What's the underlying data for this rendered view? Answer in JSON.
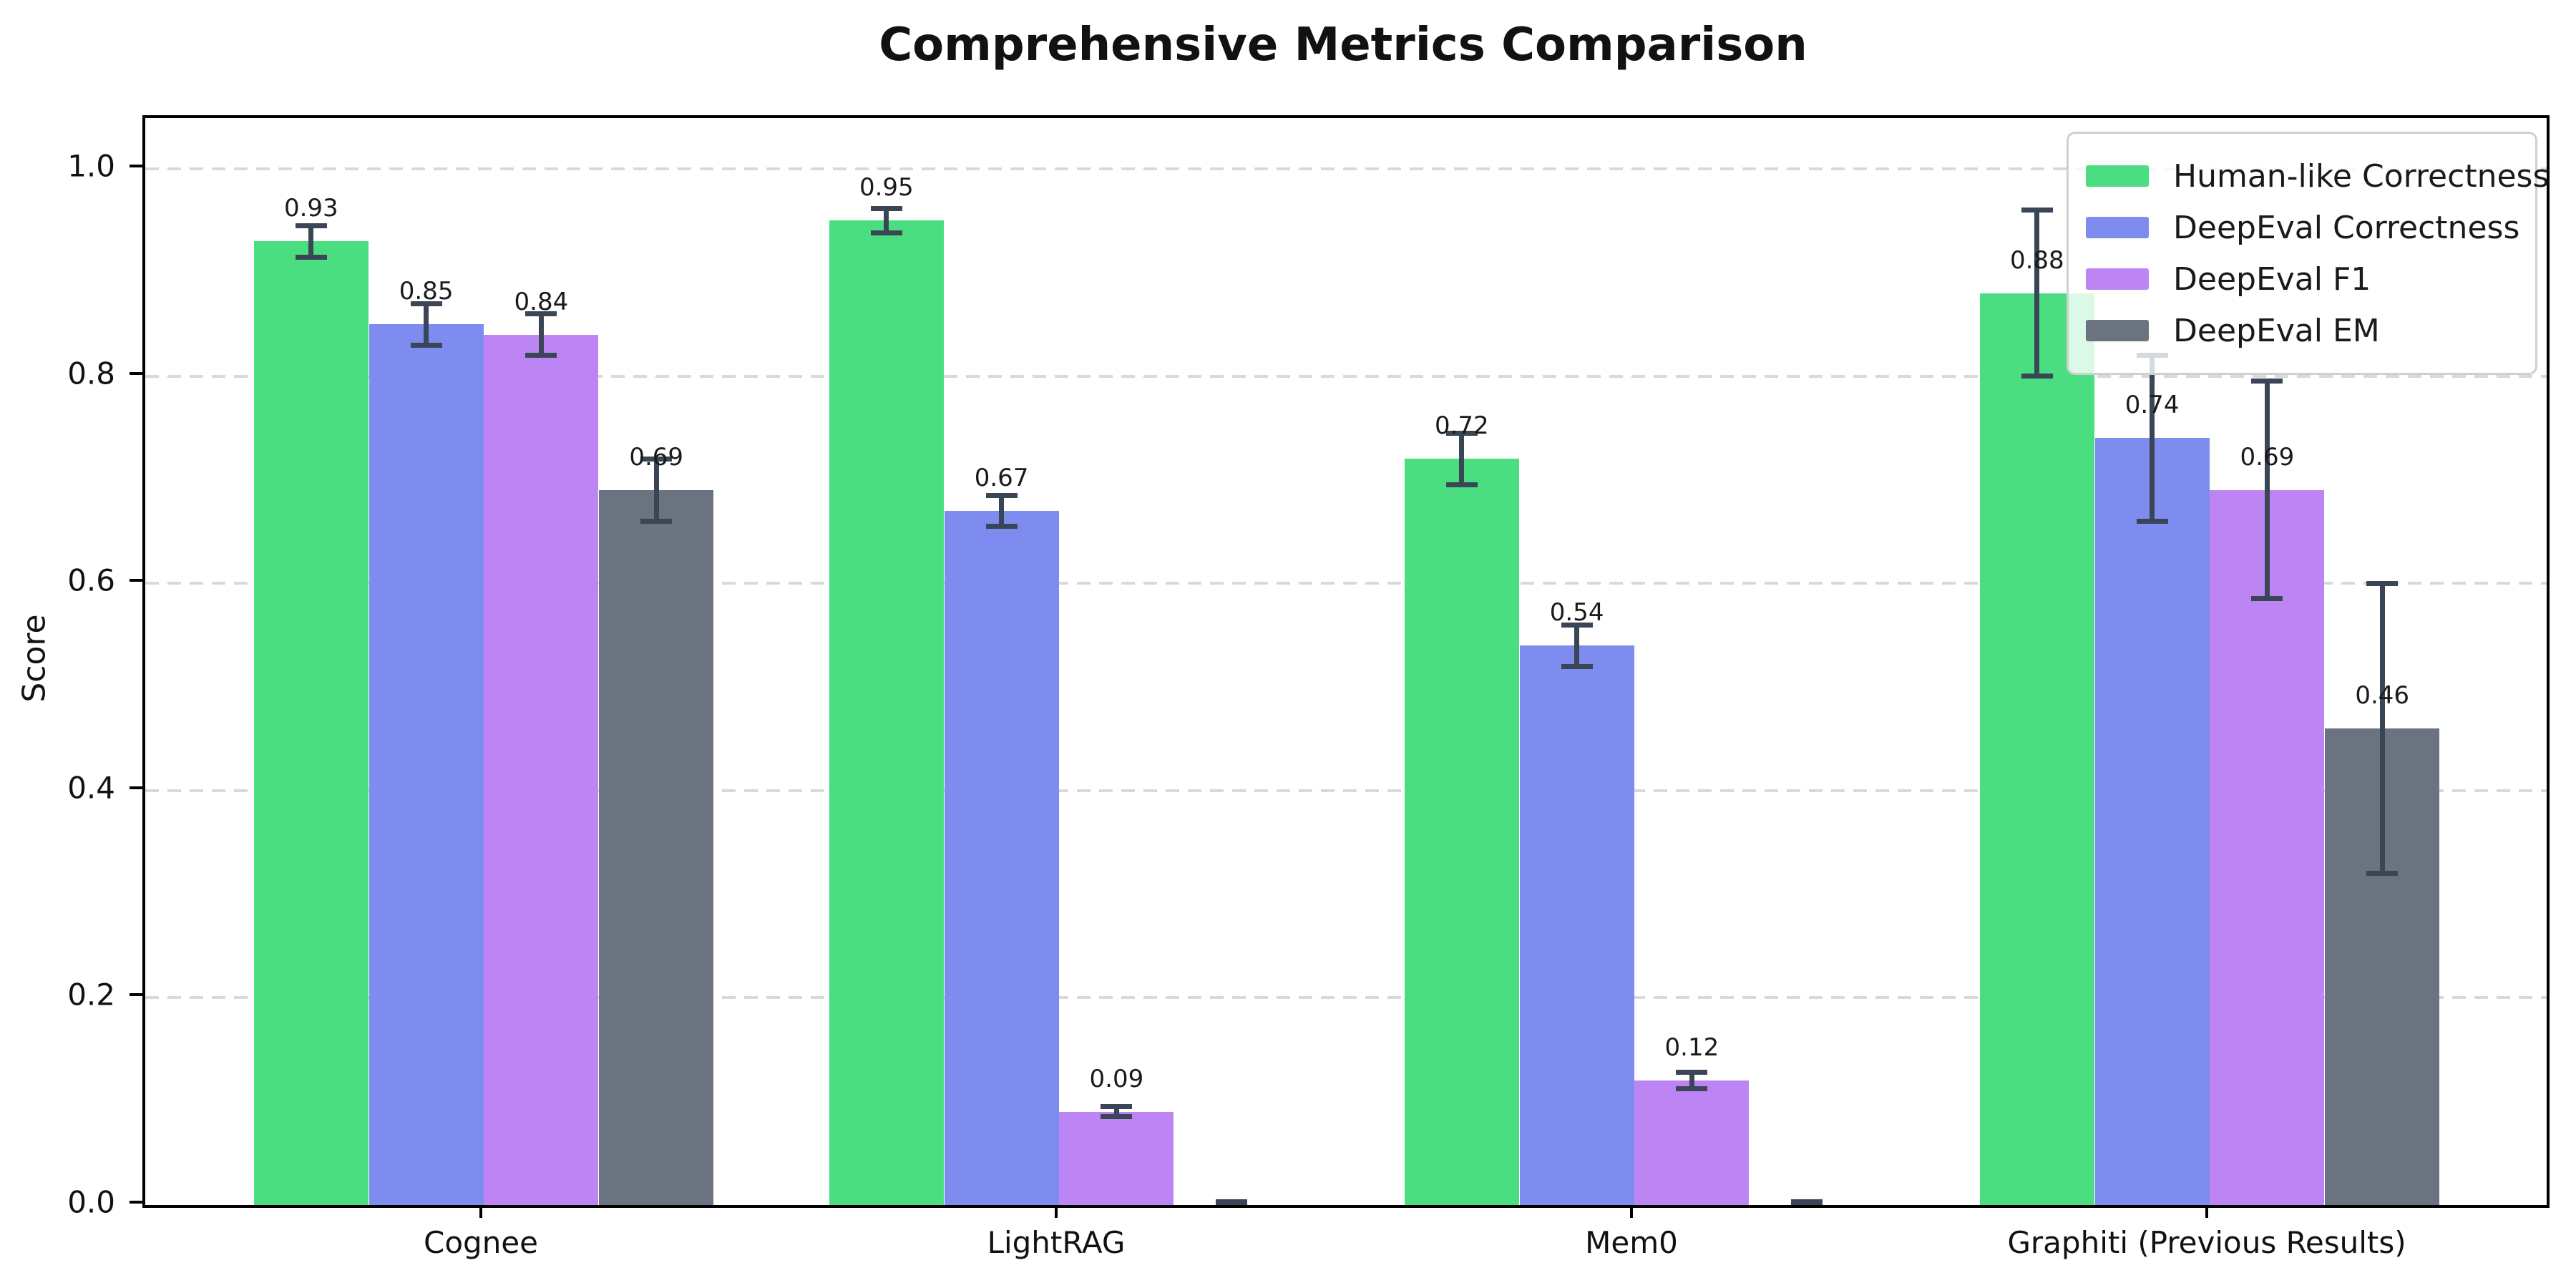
{
  "title": "Comprehensive Metrics Comparison",
  "y_axis_label": "Score",
  "chart_data": {
    "type": "bar",
    "title": "Comprehensive Metrics Comparison",
    "xlabel": "",
    "ylabel": "Score",
    "categories": [
      "Cognee",
      "LightRAG",
      "Mem0",
      "Graphiti (Previous Results)"
    ],
    "series": [
      {
        "name": "Human-like Correctness",
        "color": "#4ade80",
        "values": [
          0.93,
          0.95,
          0.72,
          0.88
        ],
        "errors": [
          0.015,
          0.012,
          0.025,
          0.08
        ],
        "labels": [
          "0.93",
          "0.95",
          "0.72",
          "0.88"
        ]
      },
      {
        "name": "DeepEval Correctness",
        "color": "#7e8cf0",
        "values": [
          0.85,
          0.67,
          0.54,
          0.74
        ],
        "errors": [
          0.02,
          0.015,
          0.02,
          0.08
        ],
        "labels": [
          "0.85",
          "0.67",
          "0.54",
          "0.74"
        ]
      },
      {
        "name": "DeepEval F1",
        "color": "#bd85f4",
        "values": [
          0.84,
          0.09,
          0.12,
          0.69
        ],
        "errors": [
          0.02,
          0.005,
          0.008,
          0.105
        ],
        "labels": [
          "0.84",
          "0.09",
          "0.12",
          "0.69"
        ]
      },
      {
        "name": "DeepEval EM",
        "color": "#6b7280",
        "values": [
          0.69,
          0.0,
          0.0,
          0.46
        ],
        "errors": [
          0.03,
          0.003,
          0.003,
          0.14
        ],
        "labels": [
          "0.69",
          "",
          "",
          "0.46"
        ]
      }
    ],
    "yticks": [
      "0.0",
      "0.2",
      "0.4",
      "0.6",
      "0.8",
      "1.0"
    ],
    "ytick_values": [
      0.0,
      0.2,
      0.4,
      0.6,
      0.8,
      1.0
    ],
    "ylim": [
      0,
      1.049
    ],
    "grid": "horizontal-dashed",
    "gridline_color": "#d9d9d9",
    "legend_position": "upper-right",
    "error_bar_color": "#3a4556"
  }
}
